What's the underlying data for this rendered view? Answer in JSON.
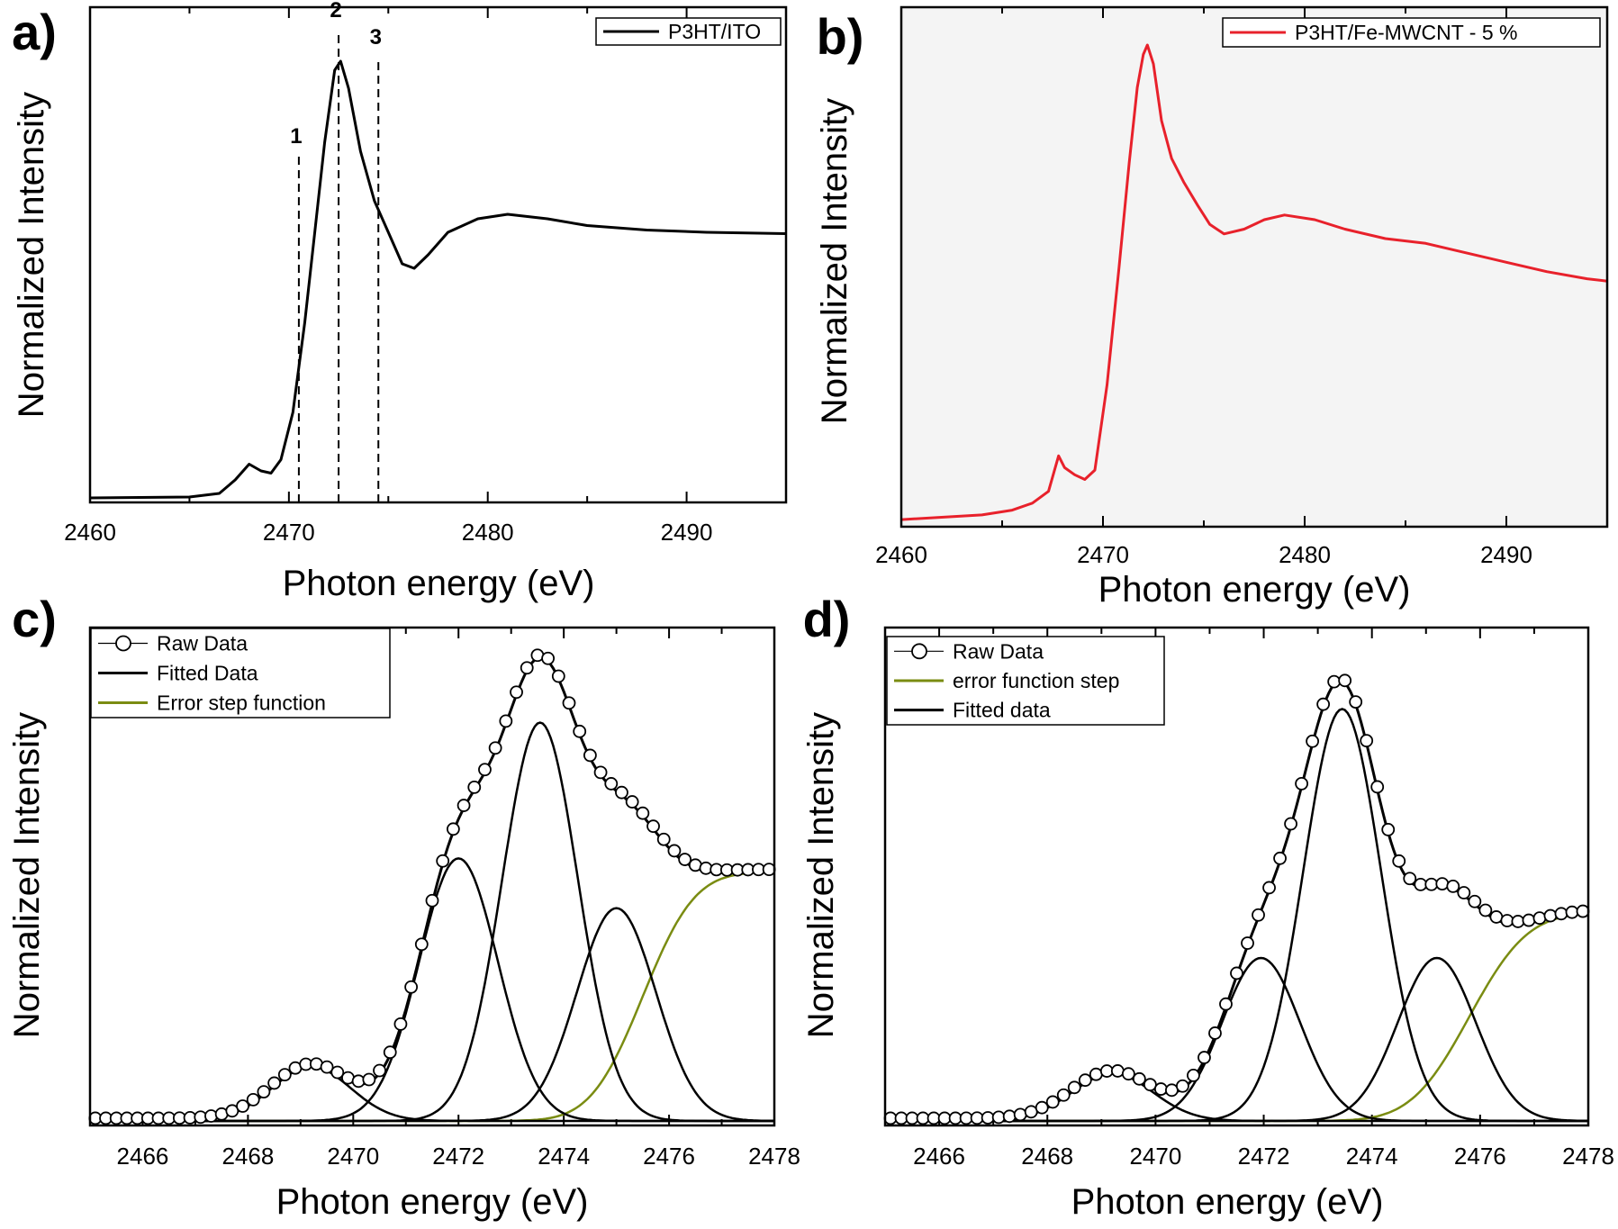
{
  "colors": {
    "black": "#000000",
    "red": "#e8212b",
    "olive": "#7a8c12",
    "panel_b_bg": "#f4f4f4"
  },
  "chart_data": [
    {
      "panel": "a)",
      "type": "line",
      "xlabel": "Photon energy (eV)",
      "ylabel": "Normalized Intensity",
      "xlim": [
        2460,
        2495
      ],
      "ylim": [
        0,
        1.1
      ],
      "xticks": [
        2460,
        2470,
        2480,
        2490
      ],
      "grid": false,
      "legend_position": "top-right",
      "series": [
        {
          "name": "P3HT/ITO",
          "color": "#000000",
          "style": "line",
          "points": [
            [
              2460,
              0.01
            ],
            [
              2465,
              0.012
            ],
            [
              2466.5,
              0.02
            ],
            [
              2467.3,
              0.05
            ],
            [
              2468,
              0.085
            ],
            [
              2468.6,
              0.07
            ],
            [
              2469.1,
              0.065
            ],
            [
              2469.6,
              0.095
            ],
            [
              2470.2,
              0.2
            ],
            [
              2470.8,
              0.4
            ],
            [
              2471.3,
              0.6
            ],
            [
              2471.8,
              0.8
            ],
            [
              2472.3,
              0.96
            ],
            [
              2472.6,
              0.98
            ],
            [
              2473.0,
              0.92
            ],
            [
              2473.6,
              0.78
            ],
            [
              2474.3,
              0.67
            ],
            [
              2475.1,
              0.59
            ],
            [
              2475.7,
              0.53
            ],
            [
              2476.3,
              0.52
            ],
            [
              2477.0,
              0.55
            ],
            [
              2478.0,
              0.6
            ],
            [
              2479.5,
              0.63
            ],
            [
              2481,
              0.64
            ],
            [
              2483,
              0.63
            ],
            [
              2485,
              0.615
            ],
            [
              2488,
              0.605
            ],
            [
              2491,
              0.6
            ],
            [
              2495,
              0.597
            ]
          ]
        }
      ],
      "vlines": [
        {
          "label": "1",
          "x": 2470.5,
          "ymax": 0.77
        },
        {
          "label": "2",
          "x": 2472.5,
          "ymax": 1.05
        },
        {
          "label": "3",
          "x": 2474.5,
          "ymax": 0.99
        }
      ]
    },
    {
      "panel": "b)",
      "type": "line",
      "xlabel": "Photon energy (eV)",
      "ylabel": "Normalized Intensity",
      "xlim": [
        2460,
        2495
      ],
      "ylim": [
        0,
        1.1
      ],
      "xticks": [
        2460,
        2470,
        2480,
        2490
      ],
      "grid": false,
      "legend_position": "top-right",
      "series": [
        {
          "name": "P3HT/Fe-MWCNT - 5 %",
          "color": "#e8212b",
          "style": "line",
          "points": [
            [
              2460,
              0.015
            ],
            [
              2462,
              0.02
            ],
            [
              2464,
              0.025
            ],
            [
              2465.5,
              0.035
            ],
            [
              2466.5,
              0.05
            ],
            [
              2467.3,
              0.075
            ],
            [
              2467.8,
              0.15
            ],
            [
              2468.1,
              0.125
            ],
            [
              2468.6,
              0.11
            ],
            [
              2469.1,
              0.1
            ],
            [
              2469.6,
              0.12
            ],
            [
              2470.2,
              0.3
            ],
            [
              2470.8,
              0.55
            ],
            [
              2471.3,
              0.77
            ],
            [
              2471.7,
              0.93
            ],
            [
              2472.0,
              1.0
            ],
            [
              2472.2,
              1.02
            ],
            [
              2472.5,
              0.98
            ],
            [
              2472.9,
              0.86
            ],
            [
              2473.4,
              0.78
            ],
            [
              2474.0,
              0.73
            ],
            [
              2474.7,
              0.68
            ],
            [
              2475.3,
              0.64
            ],
            [
              2476.0,
              0.62
            ],
            [
              2477.0,
              0.63
            ],
            [
              2478.0,
              0.65
            ],
            [
              2479.0,
              0.66
            ],
            [
              2480.5,
              0.65
            ],
            [
              2482,
              0.63
            ],
            [
              2484,
              0.61
            ],
            [
              2486,
              0.6
            ],
            [
              2488,
              0.58
            ],
            [
              2490,
              0.56
            ],
            [
              2492,
              0.54
            ],
            [
              2494,
              0.525
            ],
            [
              2495,
              0.52
            ]
          ]
        }
      ]
    },
    {
      "panel": "c)",
      "type": "line",
      "xlabel": "Photon energy (eV)",
      "ylabel": "Normalized Intensity",
      "xlim": [
        2465,
        2478
      ],
      "ylim": [
        0,
        1.1
      ],
      "xticks": [
        2466,
        2468,
        2470,
        2472,
        2474,
        2476,
        2478
      ],
      "grid": false,
      "legend_position": "top-left",
      "legend": [
        {
          "label": "Raw Data",
          "style": "circles-line",
          "color": "#000000"
        },
        {
          "label": "Fitted Data",
          "style": "line",
          "color": "#000000"
        },
        {
          "label": "Error step function",
          "style": "line",
          "color": "#7a8c12"
        }
      ],
      "components": {
        "gaussians": [
          {
            "center": 2469.2,
            "amplitude": 0.12,
            "sigma": 0.75
          },
          {
            "center": 2472.0,
            "amplitude": 0.58,
            "sigma": 0.75
          },
          {
            "center": 2473.55,
            "amplitude": 0.88,
            "sigma": 0.72
          },
          {
            "center": 2475.0,
            "amplitude": 0.47,
            "sigma": 0.75
          }
        ],
        "step": {
          "center": 2475.5,
          "height": 0.55,
          "width": 1.1
        }
      },
      "raw_x_start": 2465.1,
      "raw_x_step": 0.2
    },
    {
      "panel": "d)",
      "type": "line",
      "xlabel": "Photon energy (eV)",
      "ylabel": "Normalized Intensity",
      "xlim": [
        2465,
        2478
      ],
      "ylim": [
        0,
        1.1
      ],
      "xticks": [
        2466,
        2468,
        2470,
        2472,
        2474,
        2476,
        2478
      ],
      "grid": false,
      "legend_position": "top-left",
      "legend": [
        {
          "label": "Raw Data",
          "style": "circles-line",
          "color": "#000000"
        },
        {
          "label": "error function step",
          "style": "line",
          "color": "#7a8c12"
        },
        {
          "label": "Fitted data",
          "style": "line",
          "color": "#000000"
        }
      ],
      "components": {
        "gaussians": [
          {
            "center": 2469.2,
            "amplitude": 0.105,
            "sigma": 0.75
          },
          {
            "center": 2471.95,
            "amplitude": 0.36,
            "sigma": 0.72
          },
          {
            "center": 2473.45,
            "amplitude": 0.91,
            "sigma": 0.72
          },
          {
            "center": 2475.2,
            "amplitude": 0.36,
            "sigma": 0.72
          }
        ],
        "step": {
          "center": 2475.8,
          "height": 0.46,
          "width": 1.2
        }
      },
      "raw_x_start": 2465.1,
      "raw_x_step": 0.2
    }
  ]
}
